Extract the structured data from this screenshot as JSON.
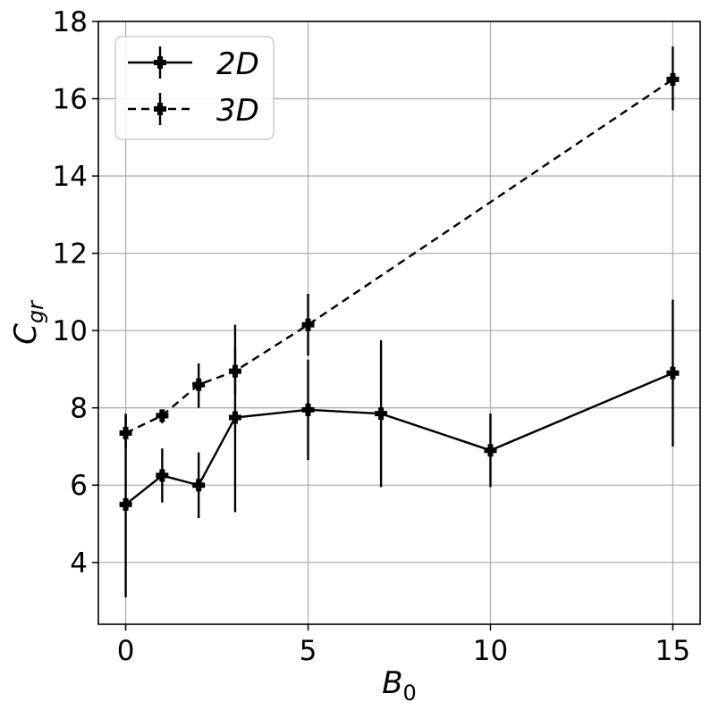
{
  "chart_data": {
    "type": "line",
    "xlabel": "B",
    "xlabel_sub": "0",
    "ylabel": "C",
    "ylabel_sub": "gr",
    "xlim": [
      -0.75,
      15.75
    ],
    "ylim": [
      2.4,
      18
    ],
    "xticks": [
      0,
      5,
      10,
      15
    ],
    "yticks": [
      4,
      6,
      8,
      10,
      12,
      14,
      16,
      18
    ],
    "grid": true,
    "legend_position": "top-left",
    "series": [
      {
        "name": "2D",
        "linestyle": "solid",
        "color": "#000000",
        "x": [
          0,
          1,
          2,
          3,
          5,
          7,
          10,
          15
        ],
        "y": [
          5.5,
          6.25,
          6.0,
          7.75,
          7.95,
          7.85,
          6.9,
          8.9
        ],
        "yerr_low": [
          3.1,
          5.55,
          5.15,
          5.3,
          6.65,
          5.95,
          5.95,
          7.0
        ],
        "yerr_high": [
          7.85,
          6.95,
          6.85,
          10.15,
          9.25,
          9.75,
          7.85,
          10.8
        ]
      },
      {
        "name": "3D",
        "linestyle": "dashed",
        "color": "#000000",
        "x": [
          0,
          1,
          2,
          3,
          5,
          15
        ],
        "y": [
          7.35,
          7.8,
          8.6,
          8.95,
          10.15,
          16.5
        ],
        "yerr_low": [
          6.95,
          7.6,
          8.0,
          8.35,
          9.35,
          15.7
        ],
        "yerr_high": [
          7.8,
          7.95,
          9.15,
          9.55,
          10.95,
          17.35
        ]
      }
    ]
  }
}
